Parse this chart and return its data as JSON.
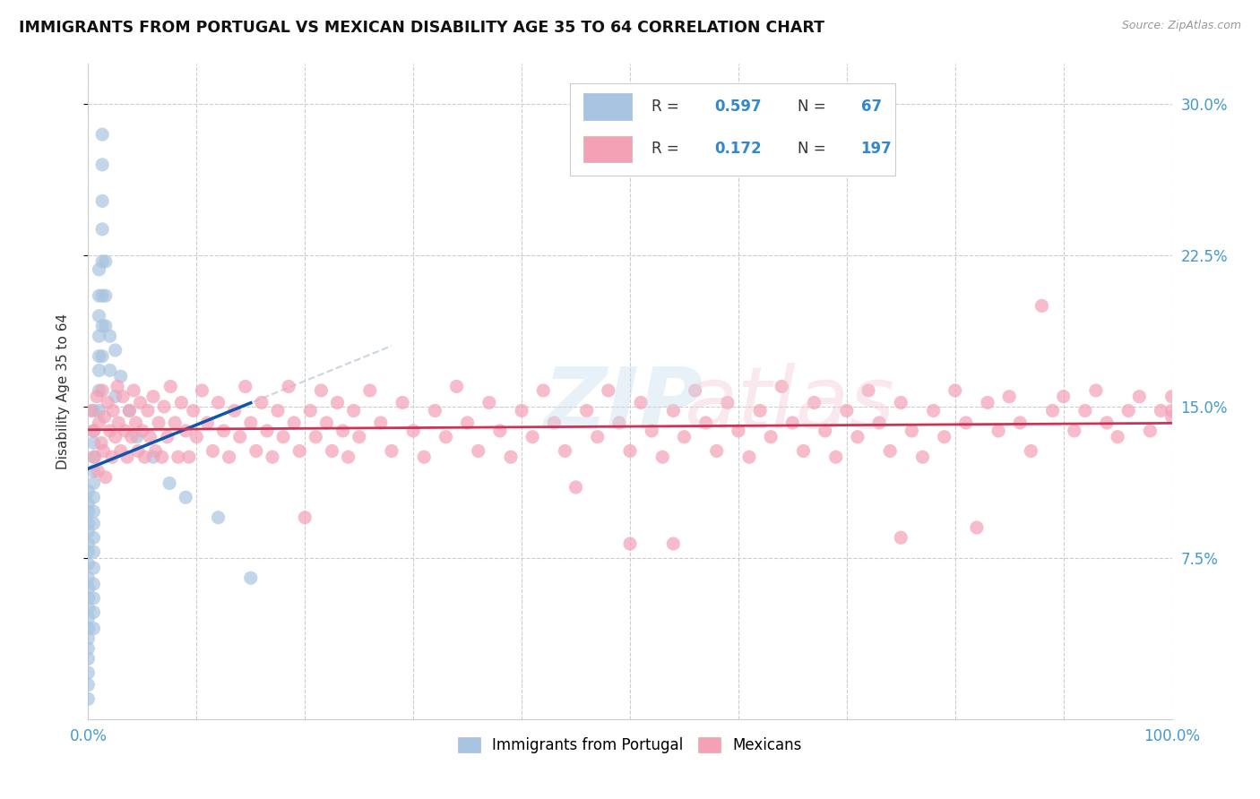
{
  "title": "IMMIGRANTS FROM PORTUGAL VS MEXICAN DISABILITY AGE 35 TO 64 CORRELATION CHART",
  "source_text": "Source: ZipAtlas.com",
  "ylabel": "Disability Age 35 to 64",
  "xlim": [
    0.0,
    1.0
  ],
  "ylim": [
    -0.005,
    0.32
  ],
  "yticks": [
    0.075,
    0.15,
    0.225,
    0.3
  ],
  "ytick_labels": [
    "7.5%",
    "15.0%",
    "22.5%",
    "30.0%"
  ],
  "xtick_labels": [
    "0.0%",
    "",
    "",
    "",
    "",
    "",
    "",
    "",
    "",
    "",
    "100.0%"
  ],
  "background_color": "#ffffff",
  "grid_color": "#cccccc",
  "portugal_color": "#a8c4e0",
  "mexico_color": "#f4a0b5",
  "portugal_line_color": "#1155aa",
  "mexico_line_color": "#cc3355",
  "portugal_points": [
    [
      0.0,
      0.108
    ],
    [
      0.0,
      0.102
    ],
    [
      0.0,
      0.098
    ],
    [
      0.0,
      0.092
    ],
    [
      0.0,
      0.088
    ],
    [
      0.0,
      0.082
    ],
    [
      0.0,
      0.078
    ],
    [
      0.0,
      0.072
    ],
    [
      0.0,
      0.065
    ],
    [
      0.0,
      0.06
    ],
    [
      0.0,
      0.055
    ],
    [
      0.0,
      0.05
    ],
    [
      0.0,
      0.045
    ],
    [
      0.0,
      0.04
    ],
    [
      0.0,
      0.035
    ],
    [
      0.0,
      0.03
    ],
    [
      0.0,
      0.025
    ],
    [
      0.0,
      0.018
    ],
    [
      0.0,
      0.012
    ],
    [
      0.0,
      0.005
    ],
    [
      0.005,
      0.148
    ],
    [
      0.005,
      0.138
    ],
    [
      0.005,
      0.132
    ],
    [
      0.005,
      0.125
    ],
    [
      0.005,
      0.118
    ],
    [
      0.005,
      0.112
    ],
    [
      0.005,
      0.105
    ],
    [
      0.005,
      0.098
    ],
    [
      0.005,
      0.092
    ],
    [
      0.005,
      0.085
    ],
    [
      0.005,
      0.078
    ],
    [
      0.005,
      0.07
    ],
    [
      0.005,
      0.062
    ],
    [
      0.005,
      0.055
    ],
    [
      0.005,
      0.048
    ],
    [
      0.005,
      0.04
    ],
    [
      0.01,
      0.218
    ],
    [
      0.01,
      0.205
    ],
    [
      0.01,
      0.195
    ],
    [
      0.01,
      0.185
    ],
    [
      0.01,
      0.175
    ],
    [
      0.01,
      0.168
    ],
    [
      0.01,
      0.158
    ],
    [
      0.01,
      0.148
    ],
    [
      0.013,
      0.285
    ],
    [
      0.013,
      0.27
    ],
    [
      0.013,
      0.252
    ],
    [
      0.013,
      0.238
    ],
    [
      0.013,
      0.222
    ],
    [
      0.013,
      0.205
    ],
    [
      0.013,
      0.19
    ],
    [
      0.013,
      0.175
    ],
    [
      0.016,
      0.222
    ],
    [
      0.016,
      0.205
    ],
    [
      0.016,
      0.19
    ],
    [
      0.02,
      0.185
    ],
    [
      0.02,
      0.168
    ],
    [
      0.025,
      0.178
    ],
    [
      0.025,
      0.155
    ],
    [
      0.03,
      0.165
    ],
    [
      0.038,
      0.148
    ],
    [
      0.045,
      0.135
    ],
    [
      0.06,
      0.125
    ],
    [
      0.075,
      0.112
    ],
    [
      0.09,
      0.105
    ],
    [
      0.12,
      0.095
    ],
    [
      0.15,
      0.065
    ],
    [
      0.0,
      0.0
    ],
    [
      0.0,
      0.0
    ],
    [
      0.0,
      0.0
    ]
  ],
  "mexico_points": [
    [
      0.003,
      0.148
    ],
    [
      0.005,
      0.138
    ],
    [
      0.006,
      0.125
    ],
    [
      0.008,
      0.155
    ],
    [
      0.009,
      0.118
    ],
    [
      0.01,
      0.142
    ],
    [
      0.012,
      0.132
    ],
    [
      0.013,
      0.158
    ],
    [
      0.014,
      0.128
    ],
    [
      0.015,
      0.145
    ],
    [
      0.016,
      0.115
    ],
    [
      0.018,
      0.152
    ],
    [
      0.02,
      0.138
    ],
    [
      0.022,
      0.125
    ],
    [
      0.023,
      0.148
    ],
    [
      0.025,
      0.135
    ],
    [
      0.027,
      0.16
    ],
    [
      0.028,
      0.142
    ],
    [
      0.03,
      0.128
    ],
    [
      0.032,
      0.155
    ],
    [
      0.034,
      0.138
    ],
    [
      0.036,
      0.125
    ],
    [
      0.038,
      0.148
    ],
    [
      0.04,
      0.135
    ],
    [
      0.042,
      0.158
    ],
    [
      0.044,
      0.142
    ],
    [
      0.046,
      0.128
    ],
    [
      0.048,
      0.152
    ],
    [
      0.05,
      0.138
    ],
    [
      0.052,
      0.125
    ],
    [
      0.055,
      0.148
    ],
    [
      0.057,
      0.135
    ],
    [
      0.06,
      0.155
    ],
    [
      0.062,
      0.128
    ],
    [
      0.065,
      0.142
    ],
    [
      0.068,
      0.125
    ],
    [
      0.07,
      0.15
    ],
    [
      0.073,
      0.135
    ],
    [
      0.076,
      0.16
    ],
    [
      0.08,
      0.142
    ],
    [
      0.083,
      0.125
    ],
    [
      0.086,
      0.152
    ],
    [
      0.09,
      0.138
    ],
    [
      0.093,
      0.125
    ],
    [
      0.097,
      0.148
    ],
    [
      0.1,
      0.135
    ],
    [
      0.105,
      0.158
    ],
    [
      0.11,
      0.142
    ],
    [
      0.115,
      0.128
    ],
    [
      0.12,
      0.152
    ],
    [
      0.125,
      0.138
    ],
    [
      0.13,
      0.125
    ],
    [
      0.135,
      0.148
    ],
    [
      0.14,
      0.135
    ],
    [
      0.145,
      0.16
    ],
    [
      0.15,
      0.142
    ],
    [
      0.155,
      0.128
    ],
    [
      0.16,
      0.152
    ],
    [
      0.165,
      0.138
    ],
    [
      0.17,
      0.125
    ],
    [
      0.175,
      0.148
    ],
    [
      0.18,
      0.135
    ],
    [
      0.185,
      0.16
    ],
    [
      0.19,
      0.142
    ],
    [
      0.195,
      0.128
    ],
    [
      0.2,
      0.095
    ],
    [
      0.205,
      0.148
    ],
    [
      0.21,
      0.135
    ],
    [
      0.215,
      0.158
    ],
    [
      0.22,
      0.142
    ],
    [
      0.225,
      0.128
    ],
    [
      0.23,
      0.152
    ],
    [
      0.235,
      0.138
    ],
    [
      0.24,
      0.125
    ],
    [
      0.245,
      0.148
    ],
    [
      0.25,
      0.135
    ],
    [
      0.26,
      0.158
    ],
    [
      0.27,
      0.142
    ],
    [
      0.28,
      0.128
    ],
    [
      0.29,
      0.152
    ],
    [
      0.3,
      0.138
    ],
    [
      0.31,
      0.125
    ],
    [
      0.32,
      0.148
    ],
    [
      0.33,
      0.135
    ],
    [
      0.34,
      0.16
    ],
    [
      0.35,
      0.142
    ],
    [
      0.36,
      0.128
    ],
    [
      0.37,
      0.152
    ],
    [
      0.38,
      0.138
    ],
    [
      0.39,
      0.125
    ],
    [
      0.4,
      0.148
    ],
    [
      0.41,
      0.135
    ],
    [
      0.42,
      0.158
    ],
    [
      0.43,
      0.142
    ],
    [
      0.44,
      0.128
    ],
    [
      0.45,
      0.11
    ],
    [
      0.46,
      0.148
    ],
    [
      0.47,
      0.135
    ],
    [
      0.48,
      0.158
    ],
    [
      0.49,
      0.142
    ],
    [
      0.5,
      0.128
    ],
    [
      0.51,
      0.152
    ],
    [
      0.52,
      0.138
    ],
    [
      0.53,
      0.125
    ],
    [
      0.54,
      0.148
    ],
    [
      0.55,
      0.135
    ],
    [
      0.56,
      0.158
    ],
    [
      0.57,
      0.142
    ],
    [
      0.58,
      0.128
    ],
    [
      0.59,
      0.152
    ],
    [
      0.6,
      0.138
    ],
    [
      0.61,
      0.125
    ],
    [
      0.62,
      0.148
    ],
    [
      0.63,
      0.135
    ],
    [
      0.64,
      0.16
    ],
    [
      0.65,
      0.142
    ],
    [
      0.66,
      0.128
    ],
    [
      0.67,
      0.152
    ],
    [
      0.68,
      0.138
    ],
    [
      0.69,
      0.125
    ],
    [
      0.7,
      0.148
    ],
    [
      0.71,
      0.135
    ],
    [
      0.72,
      0.158
    ],
    [
      0.73,
      0.142
    ],
    [
      0.74,
      0.128
    ],
    [
      0.75,
      0.152
    ],
    [
      0.76,
      0.138
    ],
    [
      0.77,
      0.125
    ],
    [
      0.78,
      0.148
    ],
    [
      0.79,
      0.135
    ],
    [
      0.8,
      0.158
    ],
    [
      0.81,
      0.142
    ],
    [
      0.82,
      0.09
    ],
    [
      0.83,
      0.152
    ],
    [
      0.84,
      0.138
    ],
    [
      0.85,
      0.155
    ],
    [
      0.86,
      0.142
    ],
    [
      0.87,
      0.128
    ],
    [
      0.88,
      0.2
    ],
    [
      0.89,
      0.148
    ],
    [
      0.9,
      0.155
    ],
    [
      0.91,
      0.138
    ],
    [
      0.92,
      0.148
    ],
    [
      0.93,
      0.158
    ],
    [
      0.94,
      0.142
    ],
    [
      0.95,
      0.135
    ],
    [
      0.96,
      0.148
    ],
    [
      0.97,
      0.155
    ],
    [
      0.98,
      0.138
    ],
    [
      0.99,
      0.148
    ],
    [
      1.0,
      0.155
    ],
    [
      1.0,
      0.145
    ],
    [
      1.0,
      0.148
    ],
    [
      0.75,
      0.085
    ],
    [
      0.54,
      0.082
    ],
    [
      0.5,
      0.082
    ]
  ]
}
